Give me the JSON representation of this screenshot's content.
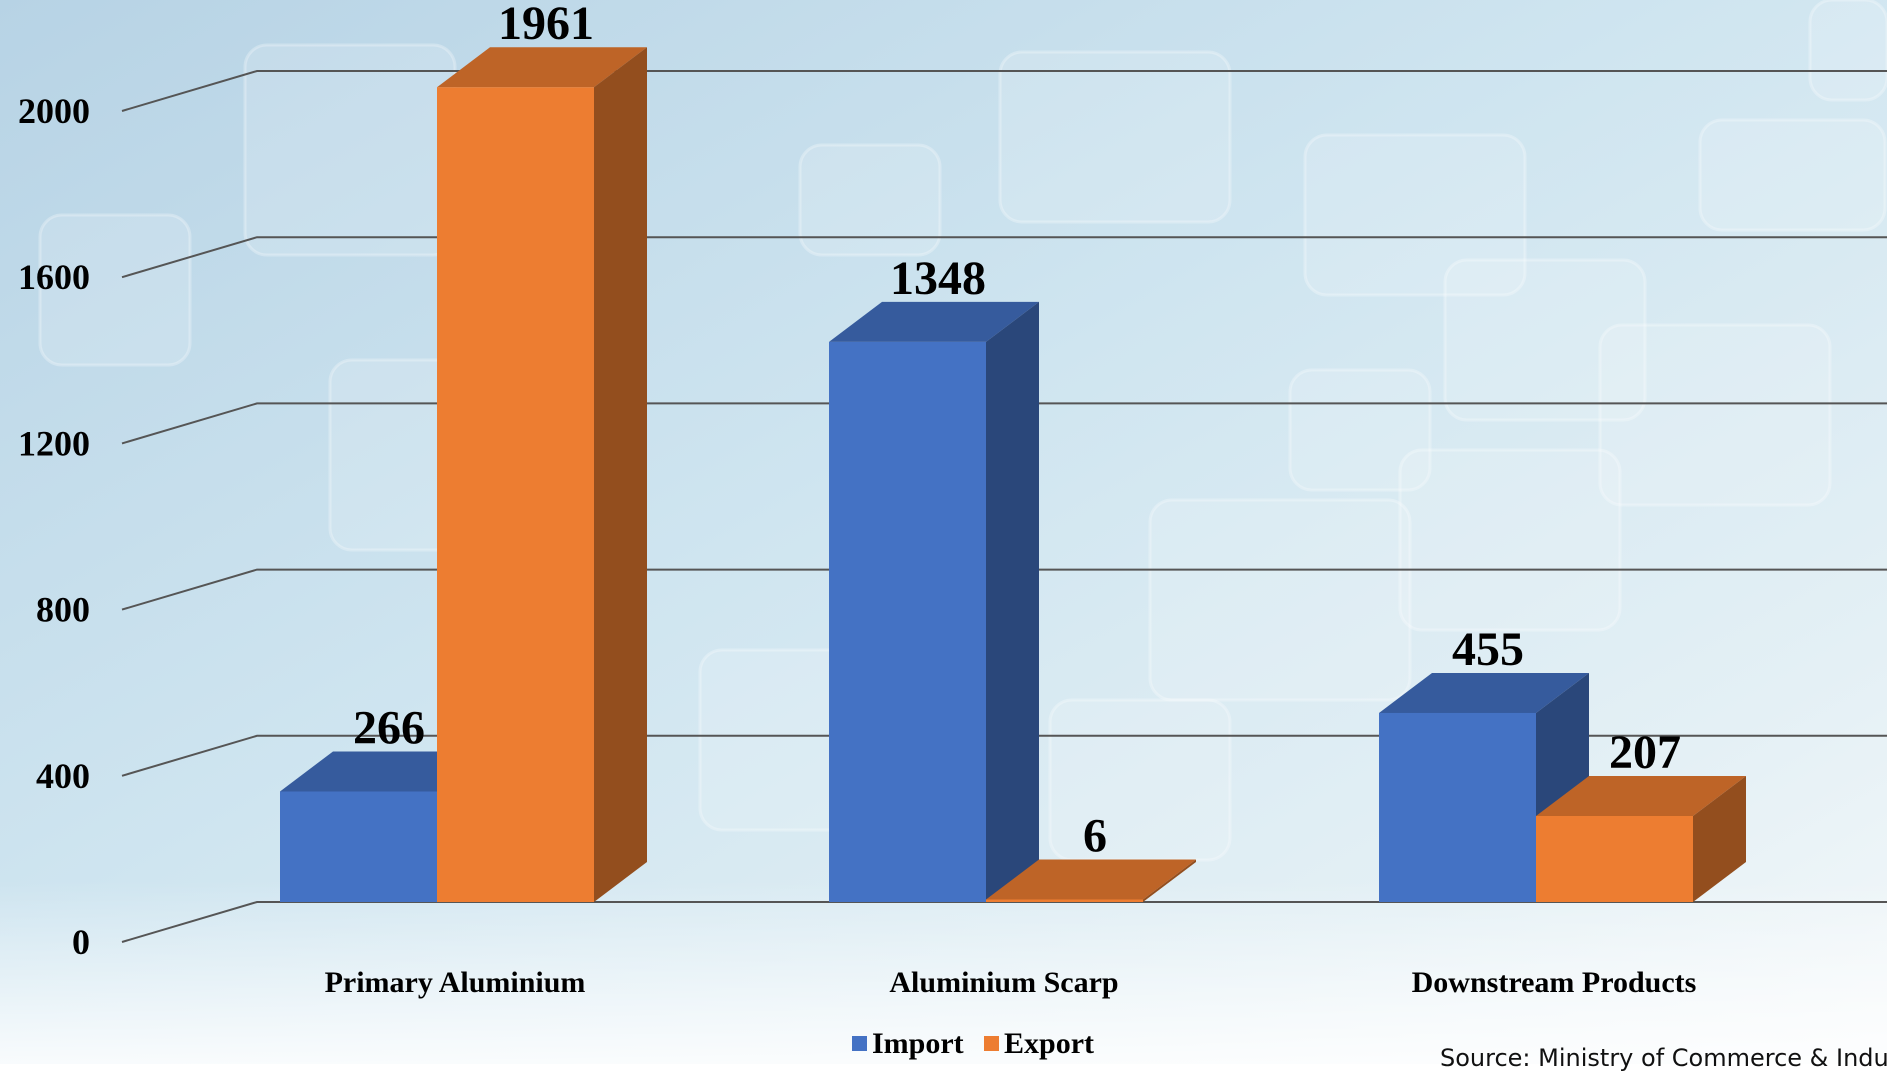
{
  "chart_data": {
    "type": "bar",
    "title": "",
    "xlabel": "",
    "ylabel": "",
    "categories": [
      "Primary Aluminium",
      "Aluminium Scarp",
      "Downstream Products"
    ],
    "series": [
      {
        "name": "Import",
        "values": [
          266,
          1348,
          455
        ],
        "color": "#4472C4"
      },
      {
        "name": "Export",
        "values": [
          1961,
          6,
          207
        ],
        "color": "#ED7D31"
      }
    ],
    "ylim": [
      0,
      2000
    ],
    "yticks": [
      0,
      400,
      800,
      1200,
      1600,
      2000
    ],
    "grid": true,
    "legend": "bottom-center"
  },
  "source_text": "Source:  Ministry of Commerce & Industry"
}
